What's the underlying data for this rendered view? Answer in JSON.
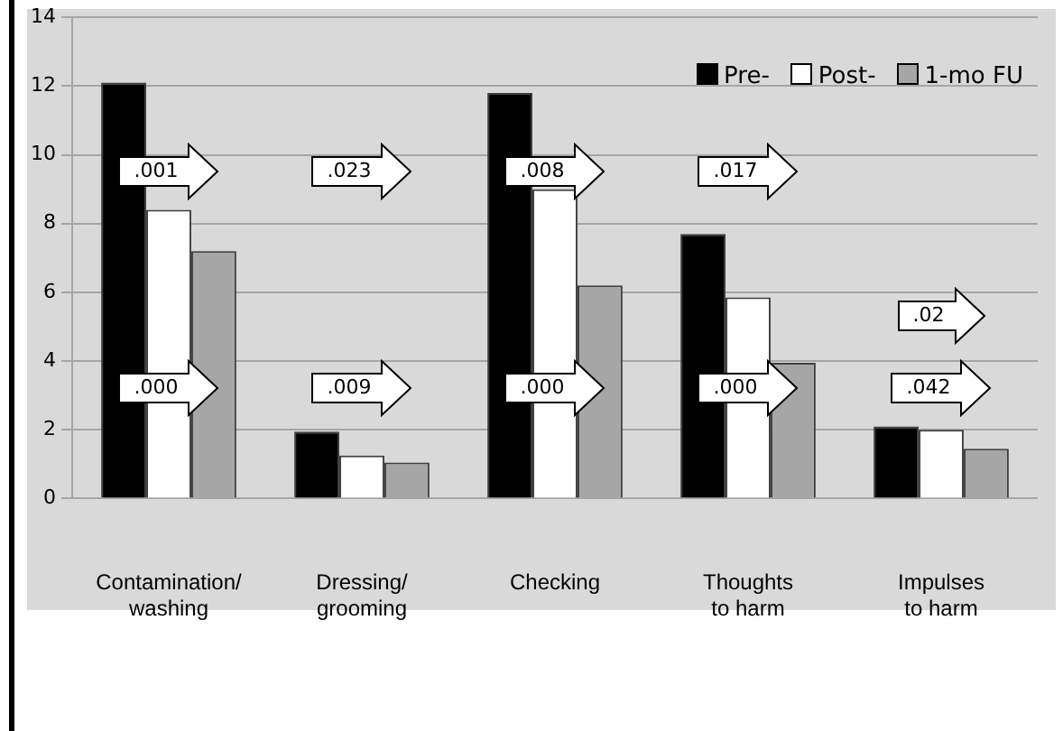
{
  "chart_data": {
    "type": "bar",
    "categories": [
      "Contamination/\nwashing",
      "Dressing/\ngrooming",
      "Checking",
      "Thoughts\nto harm",
      "Impulses\nto harm"
    ],
    "series": [
      {
        "name": "Pre-",
        "color": "#000000",
        "values": [
          12.1,
          1.95,
          11.8,
          7.7,
          2.1
        ]
      },
      {
        "name": "Post-",
        "color": "#ffffff",
        "values": [
          8.4,
          1.25,
          9.0,
          5.85,
          2.0
        ]
      },
      {
        "name": "1-mo FU",
        "color": "#a6a6a6",
        "values": [
          7.2,
          1.05,
          6.2,
          3.95,
          1.45
        ]
      }
    ],
    "ylim": [
      0,
      14
    ],
    "yticks": [
      0,
      2,
      4,
      6,
      8,
      10,
      12,
      14
    ],
    "grid": "y",
    "legend": "top right",
    "annotations": [
      ".001",
      ".023",
      ".008",
      ".017",
      ".02",
      ".000",
      ".009",
      ".000",
      ".000",
      ".042"
    ]
  }
}
